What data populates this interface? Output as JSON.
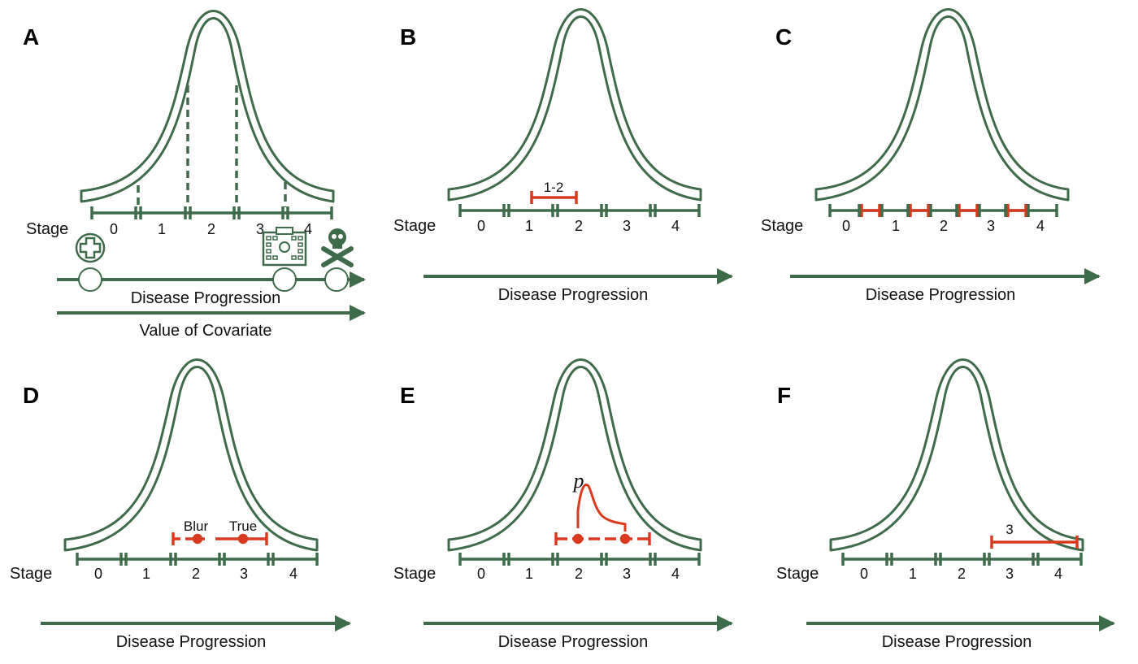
{
  "colors": {
    "green": "#3e6b4a",
    "red": "#d93a1f",
    "curve_fill": "#ffffff",
    "text": "#111111"
  },
  "icons": [
    "medical-cross-icon",
    "hospital-icon",
    "skull-crossbones-icon"
  ],
  "panels": [
    {
      "letter": "A",
      "stage_word": "Stage",
      "stages": [
        "0",
        "1",
        "2",
        "3",
        "4"
      ],
      "axis_label": "Disease Progression",
      "axis2_label": "Value of Covariate"
    },
    {
      "letter": "B",
      "stage_word": "Stage",
      "stages": [
        "0",
        "1",
        "2",
        "3",
        "4"
      ],
      "axis_label": "Disease Progression",
      "interval_label": "1-2"
    },
    {
      "letter": "C",
      "stage_word": "Stage",
      "stages": [
        "0",
        "1",
        "2",
        "3",
        "4"
      ],
      "axis_label": "Disease Progression"
    },
    {
      "letter": "D",
      "stage_word": "Stage",
      "stages": [
        "0",
        "1",
        "2",
        "3",
        "4"
      ],
      "axis_label": "Disease Progression",
      "blur_label": "Blur",
      "true_label": "True"
    },
    {
      "letter": "E",
      "stage_word": "Stage",
      "stages": [
        "0",
        "1",
        "2",
        "3",
        "4"
      ],
      "axis_label": "Disease Progression",
      "p_label": "p"
    },
    {
      "letter": "F",
      "stage_word": "Stage",
      "stages": [
        "0",
        "1",
        "2",
        "3",
        "4"
      ],
      "axis_label": "Disease Progression",
      "interval_label": "3"
    }
  ]
}
